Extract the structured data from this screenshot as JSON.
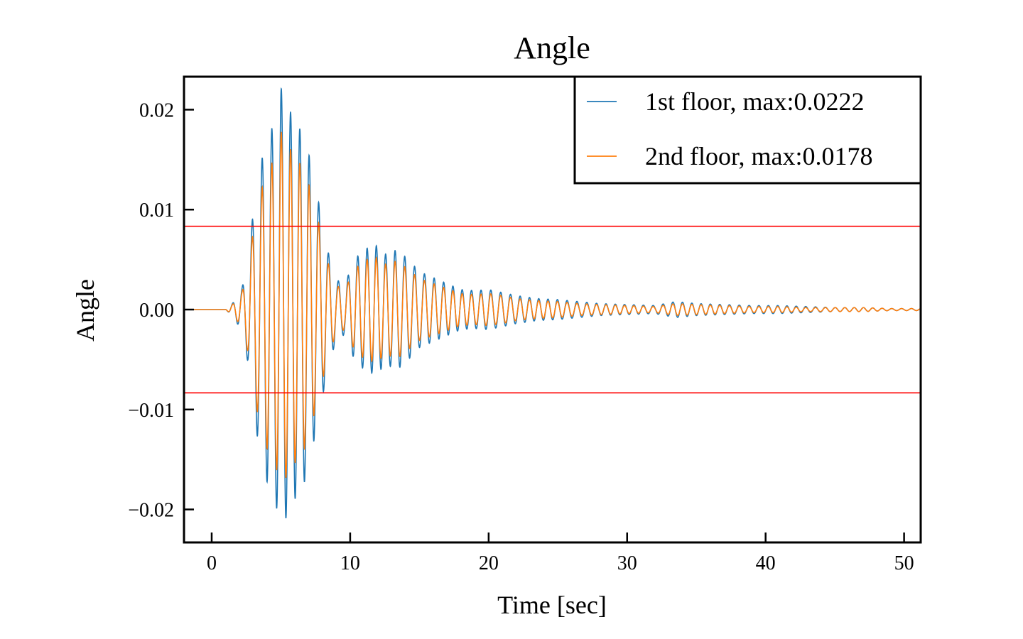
{
  "chart_data": {
    "type": "line",
    "title": "Angle",
    "xlabel": "Time [sec]",
    "ylabel": "Angle",
    "xlim": [
      -2,
      51.2
    ],
    "ylim": [
      -0.0233,
      0.0233
    ],
    "xticks": [
      0,
      10,
      20,
      30,
      40,
      50
    ],
    "xtick_labels": [
      "0",
      "10",
      "20",
      "30",
      "40",
      "50"
    ],
    "yticks": [
      -0.02,
      -0.01,
      0.0,
      0.01,
      0.02
    ],
    "ytick_labels": [
      "−0.02",
      "−0.01",
      "0.00",
      "0.01",
      "0.02"
    ],
    "grid": false,
    "legend_position": "top-right",
    "series": [
      {
        "name": "1st floor, max:0.0222",
        "color": "#1f77b4",
        "peak": 0.0222,
        "envelope": {
          "t": [
            0,
            1,
            1.5,
            2.2,
            2.6,
            3.2,
            3.9,
            4.5,
            5.0,
            5.6,
            6.2,
            6.8,
            7.4,
            7.9,
            8.4,
            9.0,
            9.6,
            10.3,
            11.0,
            11.8,
            12.6,
            13.4,
            14.2,
            15.0,
            16.0,
            17.0,
            18.0,
            19.0,
            20.0,
            21.0,
            22.0,
            23.5,
            25.0,
            26.5,
            28.0,
            30.0,
            32.0,
            33.5,
            35.0,
            37.0,
            39.0,
            41.0,
            43.0,
            45.0,
            47.0,
            49.0,
            51.0
          ],
          "a": [
            0,
            0,
            0.0006,
            0.0022,
            0.0052,
            0.012,
            0.017,
            0.0185,
            0.0222,
            0.02,
            0.0185,
            0.017,
            0.013,
            0.0095,
            0.0058,
            0.003,
            0.0025,
            0.005,
            0.006,
            0.0065,
            0.0055,
            0.006,
            0.005,
            0.0038,
            0.0032,
            0.0026,
            0.002,
            0.0019,
            0.002,
            0.0017,
            0.0014,
            0.0011,
            0.001,
            0.0008,
            0.0006,
            0.0005,
            0.0004,
            0.0008,
            0.0006,
            0.0005,
            0.0004,
            0.0004,
            0.0003,
            0.0002,
            0.0002,
            0.0001,
            0.0001
          ]
        }
      },
      {
        "name": "2nd floor, max:0.0178",
        "color": "#ff7f0e",
        "peak": 0.0178,
        "envelope": {
          "t": [
            0,
            1,
            1.5,
            2.2,
            2.6,
            3.2,
            3.9,
            4.5,
            5.0,
            5.6,
            6.2,
            6.8,
            7.4,
            7.9,
            8.4,
            9.0,
            9.6,
            10.3,
            11.0,
            11.8,
            12.6,
            13.4,
            14.2,
            15.0,
            16.0,
            17.0,
            18.0,
            19.0,
            20.0,
            21.0,
            22.0,
            23.5,
            25.0,
            26.5,
            28.0,
            30.0,
            32.0,
            33.5,
            35.0,
            37.0,
            39.0,
            41.0,
            43.0,
            45.0,
            47.0,
            49.0,
            51.0
          ],
          "a": [
            0,
            0,
            0.0005,
            0.0018,
            0.0042,
            0.0097,
            0.0137,
            0.015,
            0.0178,
            0.0162,
            0.015,
            0.0137,
            0.0105,
            0.0077,
            0.0047,
            0.0024,
            0.002,
            0.004,
            0.0049,
            0.0053,
            0.0045,
            0.0049,
            0.004,
            0.0031,
            0.0026,
            0.0021,
            0.0016,
            0.0015,
            0.0016,
            0.0014,
            0.0011,
            0.0009,
            0.0008,
            0.0006,
            0.0005,
            0.0004,
            0.0003,
            0.0006,
            0.0005,
            0.0004,
            0.0003,
            0.0003,
            0.0002,
            0.0002,
            0.0002,
            0.0001,
            0.0001
          ]
        }
      }
    ],
    "hlines": [
      {
        "y": 0.00833,
        "color": "#ff0000"
      },
      {
        "y": -0.00833,
        "color": "#ff0000"
      }
    ],
    "oscillation_frequency_hz": 1.45
  }
}
